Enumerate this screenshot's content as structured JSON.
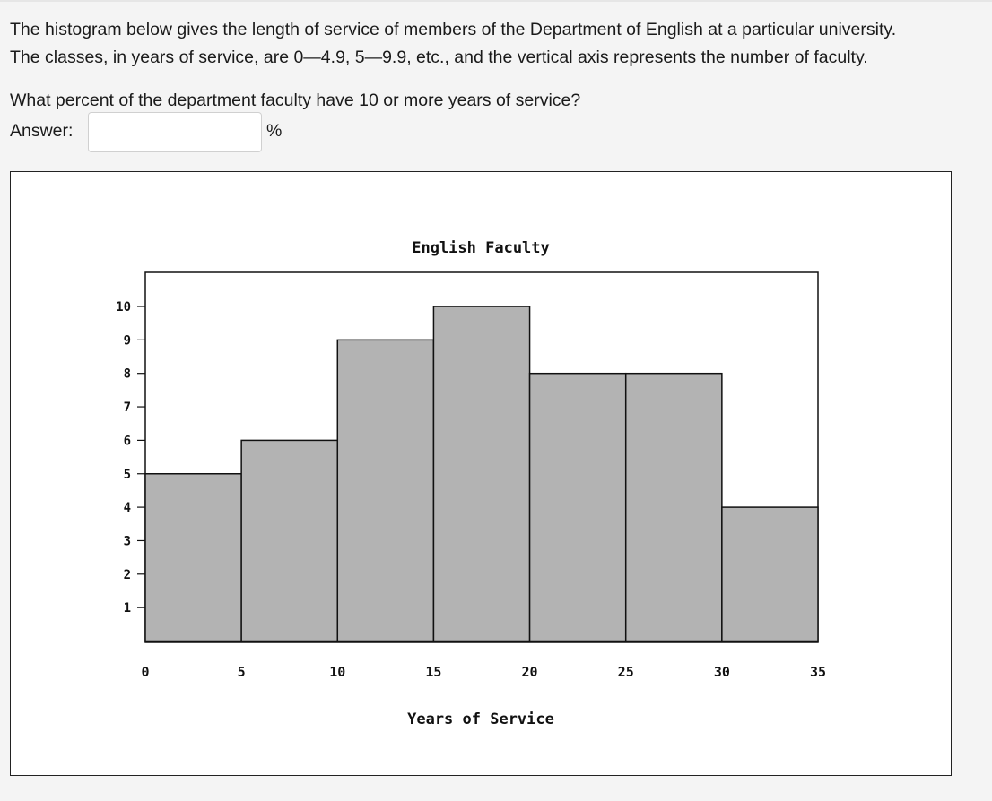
{
  "question": {
    "line1": "The histogram below gives the length of service of members of the Department of English at a particular university.",
    "line2": "The classes, in years of service, are 0—4.9, 5—9.9, etc., and the vertical axis represents the number of faculty.",
    "prompt": "What percent of the department faculty have 10 or more years of service?",
    "answer_label": "Answer:",
    "answer_value": "",
    "answer_placeholder": "",
    "answer_unit": "%"
  },
  "chart_data": {
    "type": "bar",
    "title": "English Faculty",
    "xlabel": "Years of Service",
    "ylabel": "",
    "bin_edges": [
      0,
      5,
      10,
      15,
      20,
      25,
      30,
      35
    ],
    "values": [
      5,
      6,
      9,
      10,
      8,
      8,
      4
    ],
    "x_ticks": [
      "0",
      "5",
      "10",
      "15",
      "20",
      "25",
      "30",
      "35"
    ],
    "y_ticks": [
      "1",
      "2",
      "3",
      "4",
      "5",
      "6",
      "7",
      "8",
      "9",
      "10"
    ],
    "xlim": [
      0,
      35
    ],
    "ylim": [
      0,
      11
    ],
    "grid": false,
    "bar_color": "#b3b3b3",
    "edge_color": "#111111"
  }
}
